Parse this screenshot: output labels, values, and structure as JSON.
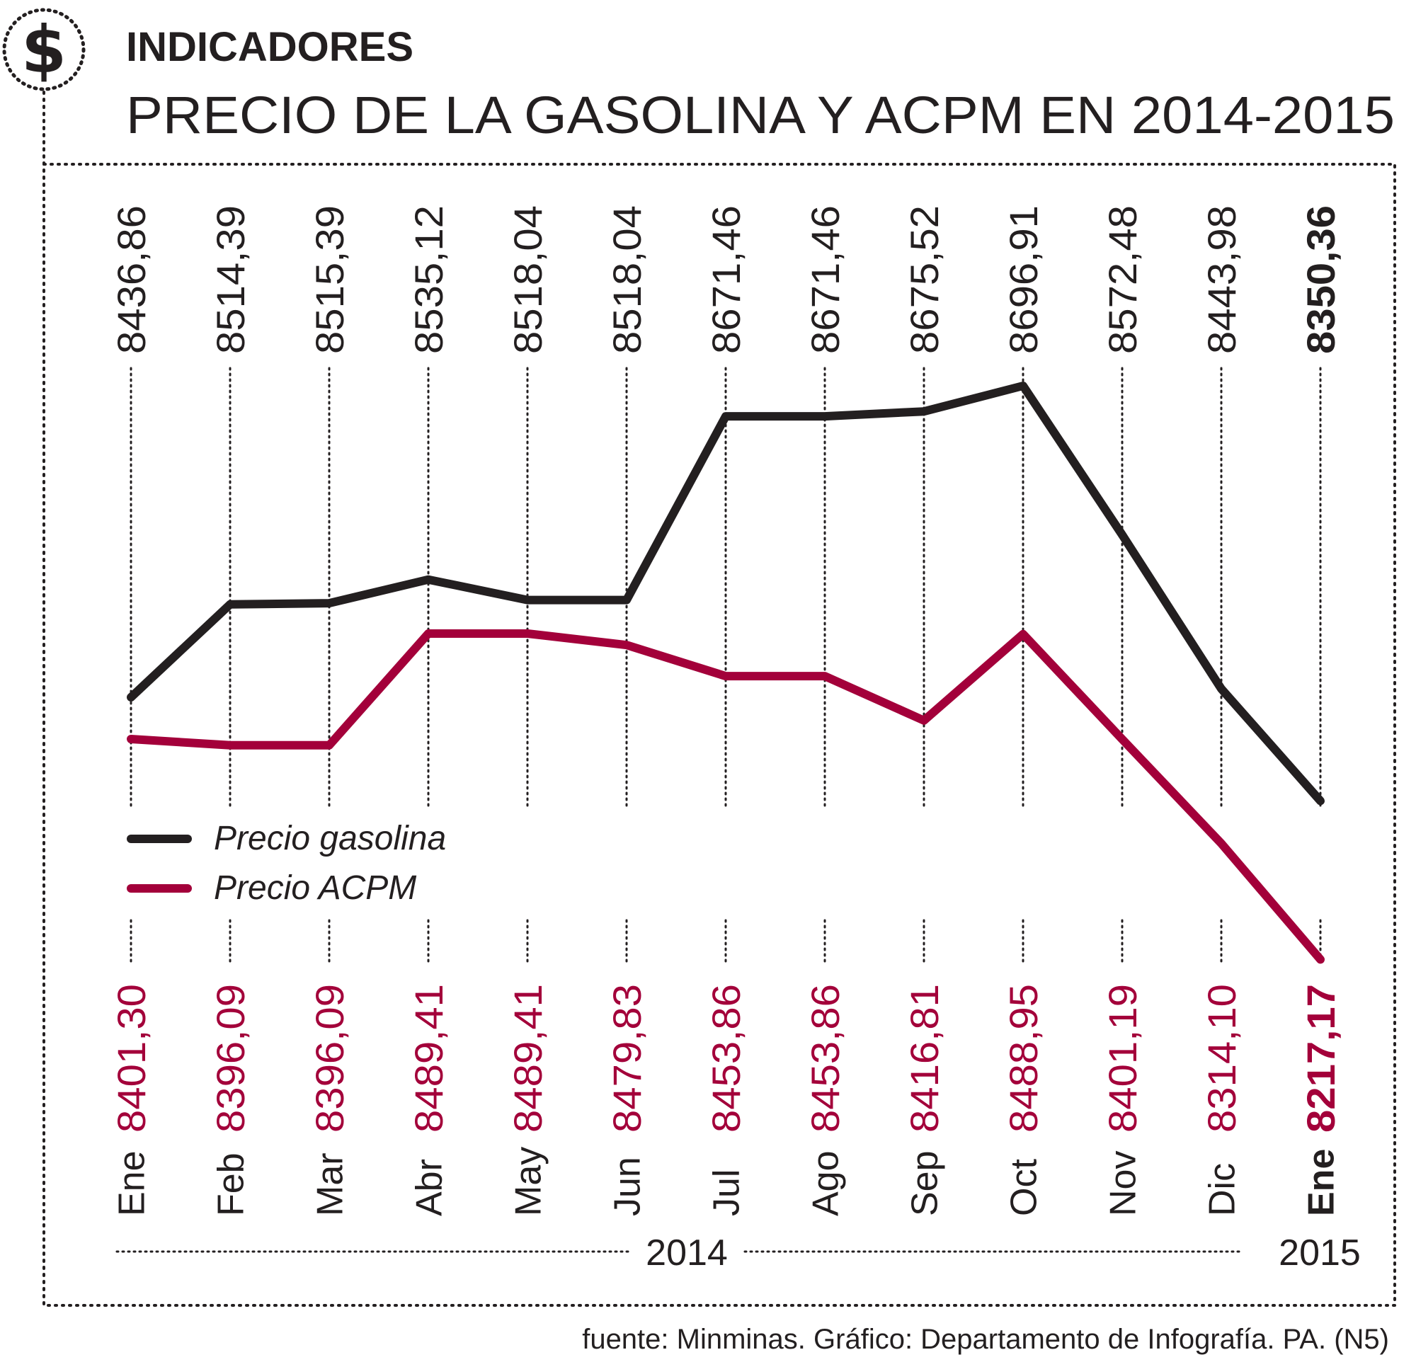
{
  "header": {
    "section": "INDICADORES",
    "title": "PRECIO DE LA GASOLINA Y ACPM EN 2014-2015",
    "icon": "dollar-sign-icon"
  },
  "source": "fuente: Minminas. Gráfico: Departamento de Infografía. PA. (N5)",
  "colors": {
    "gasolina": "#231f20",
    "acpm": "#a3003a",
    "text": "#231f20"
  },
  "chart_data": {
    "type": "line",
    "x": [
      "Ene",
      "Feb",
      "Mar",
      "Abr",
      "May",
      "Jun",
      "Jul",
      "Ago",
      "Sep",
      "Oct",
      "Nov",
      "Dic",
      "Ene"
    ],
    "years": [
      {
        "label": "2014",
        "from": 0,
        "to": 11
      },
      {
        "label": "2015",
        "from": 12,
        "to": 12
      }
    ],
    "series": [
      {
        "name": "Precio gasolina",
        "color": "#231f20",
        "values": [
          8436.86,
          8514.39,
          8515.39,
          8535.12,
          8518.04,
          8518.04,
          8671.46,
          8671.46,
          8675.52,
          8696.91,
          8572.48,
          8443.98,
          8350.36
        ],
        "labels": [
          "8436,86",
          "8514,39",
          "8515,39",
          "8535,12",
          "8518,04",
          "8518,04",
          "8671,46",
          "8671,46",
          "8675,52",
          "8696,91",
          "8572,48",
          "8443,98",
          "8350,36"
        ]
      },
      {
        "name": "Precio ACPM",
        "color": "#a3003a",
        "values": [
          8401.3,
          8396.09,
          8396.09,
          8489.41,
          8489.41,
          8479.83,
          8453.86,
          8453.86,
          8416.81,
          8488.95,
          8401.19,
          8314.1,
          8217.17
        ],
        "labels": [
          "8401,30",
          "8396,09",
          "8396,09",
          "8489,41",
          "8489,41",
          "8479,83",
          "8453,86",
          "8453,86",
          "8416,81",
          "8488,95",
          "8401,19",
          "8314,10",
          "8217,17"
        ]
      }
    ],
    "legend": "left",
    "grid": "vertical dotted"
  }
}
